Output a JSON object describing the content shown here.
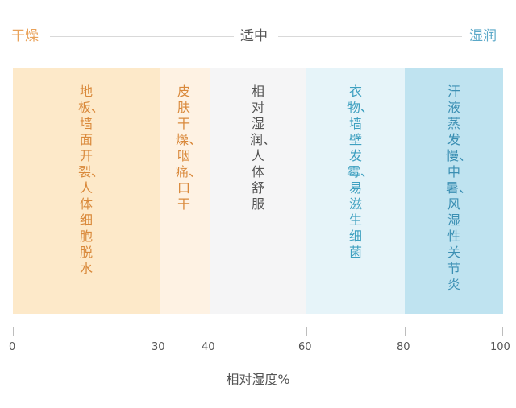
{
  "header": {
    "dry": "干燥",
    "moderate": "适中",
    "humid": "湿润"
  },
  "zones": [
    {
      "range": [
        0,
        30
      ],
      "text": "地板、墙面开裂、人体细胞脱水",
      "color": "#fde9c9",
      "text_color": "#d9893b"
    },
    {
      "range": [
        30,
        40
      ],
      "text": "皮肤干燥、咽痛、口干",
      "color": "#fef2e3",
      "text_color": "#d9893b"
    },
    {
      "range": [
        40,
        60
      ],
      "text": "相对湿润、人体舒服",
      "color": "#f5f5f6",
      "text_color": "#555555"
    },
    {
      "range": [
        60,
        80
      ],
      "text": "衣物、墙壁发霉、易滋生细菌",
      "color": "#e6f4f9",
      "text_color": "#3ea0c0"
    },
    {
      "range": [
        80,
        100
      ],
      "text": "汗液蒸发慢、中暑、风湿性关节炎",
      "color": "#bfe3f0",
      "text_color": "#3b8fb3"
    }
  ],
  "axis": {
    "ticks": [
      "0",
      "30",
      "40",
      "60",
      "80",
      "100"
    ],
    "title": "相对湿度%"
  },
  "colors": {
    "dry": "#e9a25a",
    "moderate": "#555555",
    "humid": "#5aa8c8"
  }
}
